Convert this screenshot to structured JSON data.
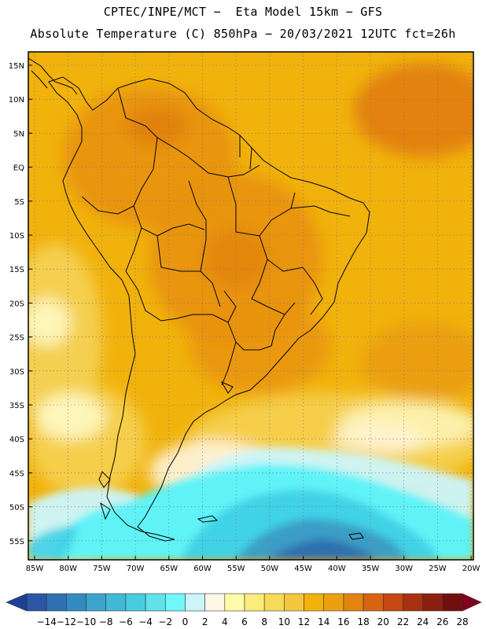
{
  "header": {
    "title_line1": "CPTEC/INPE/MCT −  Eta Model 15km − GFS",
    "title_line2": "Absolute Temperature (C) 850hPa − 20/03/2021 12UTC fct=26h"
  },
  "map": {
    "lon_labels": [
      "85W",
      "80W",
      "75W",
      "70W",
      "65W",
      "60W",
      "55W",
      "50W",
      "45W",
      "40W",
      "35W",
      "30W",
      "25W",
      "20W"
    ],
    "lat_labels": [
      "15N",
      "10N",
      "5N",
      "EQ",
      "5S",
      "10S",
      "15S",
      "20S",
      "25S",
      "30S",
      "35S",
      "40S",
      "45S",
      "50S",
      "55S"
    ],
    "colors": {
      "tropical_base": "#f1b20c",
      "warm_core": "#e8920e",
      "hot_core": "#e07a10",
      "mild": "#f6d152",
      "cool_pale": "#fef9c4",
      "cream": "#fff5e0",
      "ice": "#ccf5fb",
      "cyan": "#5ef3f7",
      "teal": "#3fd2e7",
      "steel": "#3a9ec6",
      "deep_blue": "#2d6fb0",
      "land_outline": "#000000"
    }
  },
  "colorbar": {
    "labels": [
      "−14",
      "−12",
      "−10",
      "−8",
      "−6",
      "−4",
      "−2",
      "0",
      "2",
      "4",
      "6",
      "8",
      "10",
      "12",
      "14",
      "16",
      "18",
      "20",
      "22",
      "24",
      "26",
      "28"
    ],
    "colors": [
      "#1f3f93",
      "#2a56a6",
      "#3070b3",
      "#338bc1",
      "#3ca4cc",
      "#40bad6",
      "#48cde0",
      "#5fe2ec",
      "#6ff7f9",
      "#ccf5fb",
      "#fff7e6",
      "#fefba9",
      "#fbec7c",
      "#f7db58",
      "#f4c83d",
      "#f1b20c",
      "#eba10f",
      "#e38310",
      "#d86412",
      "#c34812",
      "#a93112",
      "#8c2010",
      "#710f0f",
      "#800020"
    ]
  }
}
